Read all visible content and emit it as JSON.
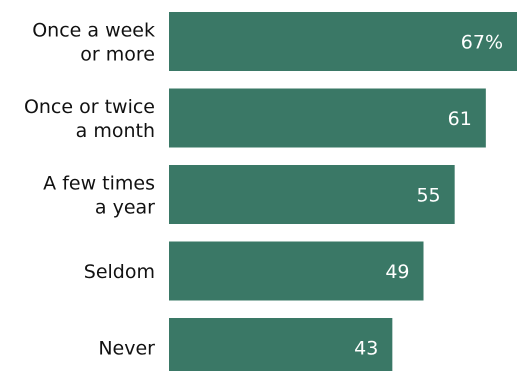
{
  "chart_data": {
    "type": "bar",
    "orientation": "horizontal",
    "categories": [
      [
        "Once a week",
        "or more"
      ],
      [
        "Once or twice",
        "a month"
      ],
      [
        "A few times",
        "a year"
      ],
      [
        "Seldom"
      ],
      [
        "Never"
      ]
    ],
    "values": [
      67,
      61,
      55,
      49,
      43
    ],
    "value_labels": [
      "67%",
      "61",
      "55",
      "49",
      "43"
    ],
    "title": "",
    "xlabel": "",
    "ylabel": "",
    "xlim": [
      0,
      67
    ],
    "grid": false,
    "legend": "none",
    "bar_color": "#3a7866",
    "value_label_color": "#ffffff",
    "category_label_color": "#111111"
  }
}
